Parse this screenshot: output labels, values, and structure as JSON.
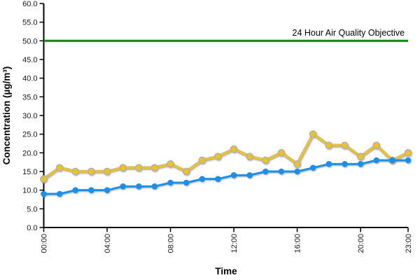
{
  "chart_data": {
    "type": "line",
    "title": "",
    "xlabel": "Time",
    "ylabel": "Concentration (µg/m³)",
    "x_hours": [
      0,
      1,
      2,
      3,
      4,
      5,
      6,
      7,
      8,
      9,
      10,
      11,
      12,
      13,
      14,
      15,
      16,
      17,
      18,
      19,
      20,
      21,
      22,
      23
    ],
    "x_tick_labels": [
      "00:00",
      "04:00",
      "08:00",
      "12:00",
      "16:00",
      "20:00",
      "23:00"
    ],
    "x_tick_hours": [
      0,
      4,
      8,
      12,
      16,
      20,
      23
    ],
    "ylim": [
      0,
      60
    ],
    "y_tick_step": 5,
    "y_tick_decimals": 1,
    "grid": "off",
    "legend": "none",
    "series": [
      {
        "name": "yellow-series",
        "color": "#F0C31E",
        "marker": "circle",
        "marker_outline": "#B0B0B0",
        "values": [
          13,
          16,
          15,
          15,
          15,
          16,
          16,
          16,
          17,
          15,
          18,
          19,
          21,
          19,
          18,
          20,
          17,
          25,
          22,
          22,
          19,
          22,
          18,
          20
        ]
      },
      {
        "name": "blue-series",
        "color": "#1B90E8",
        "marker": "circle",
        "marker_outline": "none",
        "values": [
          9,
          9,
          10,
          10,
          10,
          11,
          11,
          11,
          12,
          12,
          13,
          13,
          14,
          14,
          15,
          15,
          15,
          16,
          17,
          17,
          17,
          18,
          18,
          18
        ]
      }
    ],
    "reference_line": {
      "label": "24 Hour Air Quality Objective",
      "value": 50,
      "color": "#1E821E"
    },
    "axis_color": "#000000"
  }
}
